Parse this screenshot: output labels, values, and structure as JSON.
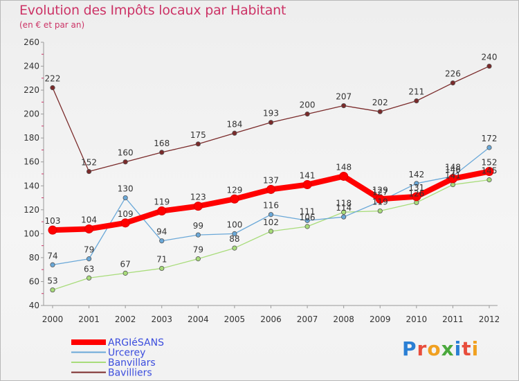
{
  "header": {
    "title": "Evolution des Impôts locaux par Habitant",
    "subtitle": "(en € et par an)"
  },
  "logo": {
    "text": "Proxiti",
    "letters": [
      {
        "char": "P",
        "color": "#2a7fd4"
      },
      {
        "char": "r",
        "color": "#e84d3c"
      },
      {
        "char": "o",
        "color": "#f0a020"
      },
      {
        "char": "x",
        "color": "#4aa83c"
      },
      {
        "char": "i",
        "color": "#2a7fd4"
      },
      {
        "char": "t",
        "color": "#e84d3c"
      },
      {
        "char": "i",
        "color": "#f0a020"
      }
    ]
  },
  "chart_data": {
    "type": "line",
    "title": "Evolution des Impôts locaux par Habitant",
    "subtitle": "(en € et par an)",
    "x": [
      "2000",
      "2001",
      "2002",
      "2003",
      "2004",
      "2005",
      "2006",
      "2007",
      "2008",
      "2009",
      "2010",
      "2011",
      "2012"
    ],
    "ylim": [
      40,
      260
    ],
    "yticks": [
      40,
      60,
      80,
      100,
      120,
      140,
      160,
      180,
      200,
      220,
      240,
      260
    ],
    "grid": false,
    "legend_position": "bottom-left",
    "series": [
      {
        "name": "ARGIéSANS",
        "color": "#ff0000",
        "style": "thick",
        "values": [
          103,
          104,
          109,
          119,
          123,
          129,
          137,
          141,
          148,
          129,
          131,
          146,
          152
        ],
        "labels": [
          "103",
          "104",
          "109",
          "119",
          "123",
          "129",
          "137",
          "141",
          "148",
          "129",
          "131",
          "146",
          "152"
        ]
      },
      {
        "name": "Urcerey",
        "color": "#6aa8d8",
        "style": "thin",
        "values": [
          74,
          79,
          130,
          94,
          99,
          100,
          116,
          111,
          114,
          127,
          142,
          148,
          172
        ],
        "labels": [
          "74",
          "79",
          "130",
          "94",
          "99",
          "100",
          "116",
          "111",
          "114",
          "127",
          "142",
          "148",
          "172"
        ]
      },
      {
        "name": "Banvillars",
        "color": "#a8dc7a",
        "style": "thin",
        "values": [
          53,
          63,
          67,
          71,
          79,
          88,
          102,
          106,
          118,
          119,
          126,
          141,
          145
        ],
        "labels": [
          "53",
          "63",
          "67",
          "71",
          "79",
          "88",
          "102",
          "106",
          "118",
          "119",
          "126",
          "141",
          "145"
        ]
      },
      {
        "name": "Bavilliers",
        "color": "#7a2a2a",
        "style": "thin",
        "values": [
          222,
          152,
          160,
          168,
          175,
          184,
          193,
          200,
          207,
          202,
          211,
          226,
          240
        ],
        "labels": [
          "222",
          "152",
          "160",
          "168",
          "175",
          "184",
          "193",
          "200",
          "207",
          "202",
          "211",
          "226",
          "240"
        ]
      }
    ]
  }
}
